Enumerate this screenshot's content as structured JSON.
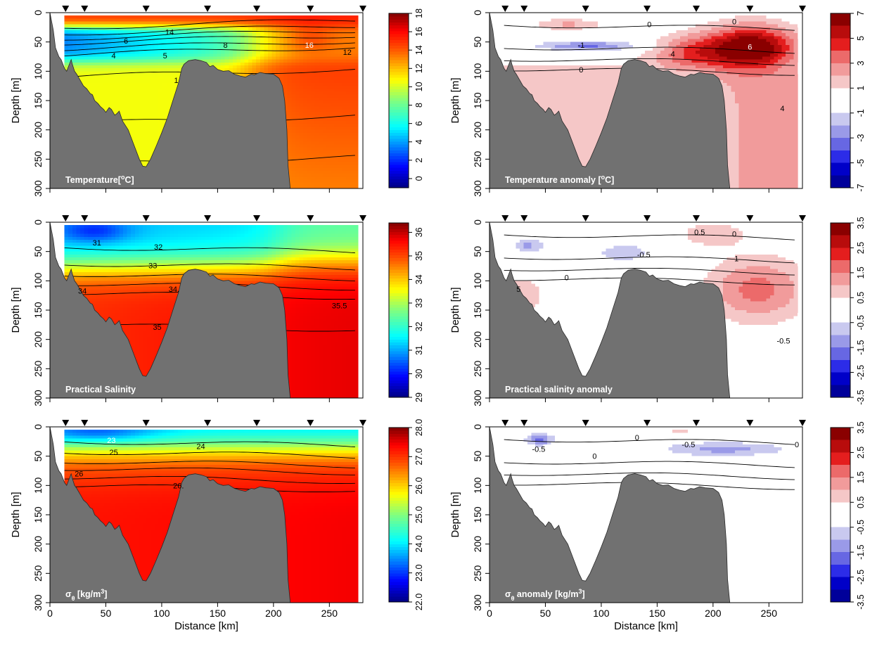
{
  "chart_data": [
    {
      "type": "heatmap",
      "id": "temperature",
      "label_parts": [
        [
          "Temperature[",
          ""
        ],
        [
          "o",
          "sup"
        ],
        [
          "C]",
          ""
        ]
      ],
      "xlabel": "",
      "ylabel": "Depth [m]",
      "xlim": [
        0,
        280
      ],
      "ylim": [
        300,
        0
      ],
      "xticks": [
        "0",
        "50",
        "100",
        "150",
        "200",
        "250"
      ],
      "yticks": [
        "0",
        "50",
        "100",
        "150",
        "200",
        "250",
        "300"
      ],
      "colorbar": {
        "type": "continuous",
        "range": [
          -1,
          18
        ],
        "ticks": [
          "0",
          "2",
          "4",
          "6",
          "8",
          "10",
          "12",
          "14",
          "16",
          "18"
        ]
      },
      "contour_labels": [
        {
          "text": "14",
          "x": 107,
          "y": 33,
          "color": "dark"
        },
        {
          "text": "6",
          "x": 68,
          "y": 48,
          "color": "dark"
        },
        {
          "text": "8",
          "x": 157,
          "y": 55,
          "color": "dark"
        },
        {
          "text": "4",
          "x": 57,
          "y": 73,
          "color": "dark"
        },
        {
          "text": "5",
          "x": 103,
          "y": 73,
          "color": "dark"
        },
        {
          "text": "1",
          "x": 113,
          "y": 115,
          "color": "dark"
        },
        {
          "text": "16",
          "x": 232,
          "y": 55,
          "color": "light"
        },
        {
          "text": "12",
          "x": 266,
          "y": 67,
          "color": "dark"
        }
      ]
    },
    {
      "type": "heatmap",
      "id": "temperature-anomaly",
      "label_parts": [
        [
          "Temperature anomaly [",
          ""
        ],
        [
          "o",
          "sup"
        ],
        [
          "C]",
          ""
        ]
      ],
      "xlabel": "",
      "ylabel": "Depth [m]",
      "xlim": [
        0,
        280
      ],
      "ylim": [
        300,
        0
      ],
      "xticks": [
        "0",
        "50",
        "100",
        "150",
        "200",
        "250"
      ],
      "yticks": [
        "0",
        "50",
        "100",
        "150",
        "200",
        "250",
        "300"
      ],
      "colorbar": {
        "type": "discrete",
        "range": [
          -7,
          7
        ],
        "ticks": [
          "7",
          "5",
          "3",
          "1",
          "-1",
          "-3",
          "-5",
          "-7"
        ]
      },
      "contour_labels": [
        {
          "text": "0",
          "x": 143,
          "y": 20,
          "color": "dark"
        },
        {
          "text": "0",
          "x": 219,
          "y": 15,
          "color": "dark"
        },
        {
          "text": "-1",
          "x": 82,
          "y": 55,
          "color": "dark"
        },
        {
          "text": "4",
          "x": 164,
          "y": 70,
          "color": "dark"
        },
        {
          "text": "6",
          "x": 233,
          "y": 58,
          "color": "light"
        },
        {
          "text": "0",
          "x": 82,
          "y": 97,
          "color": "dark"
        },
        {
          "text": "4",
          "x": 262,
          "y": 163,
          "color": "dark"
        }
      ]
    },
    {
      "type": "heatmap",
      "id": "salinity",
      "label_parts": [
        [
          "Practical Salinity",
          ""
        ]
      ],
      "xlabel": "",
      "ylabel": "Depth [m]",
      "xlim": [
        0,
        280
      ],
      "ylim": [
        300,
        0
      ],
      "xticks": [
        "0",
        "50",
        "100",
        "150",
        "200",
        "250"
      ],
      "yticks": [
        "0",
        "50",
        "100",
        "150",
        "200",
        "250",
        "300"
      ],
      "colorbar": {
        "type": "continuous",
        "range": [
          29,
          36.4
        ],
        "ticks": [
          "29",
          "30",
          "31",
          "32",
          "33",
          "34",
          "35",
          "36"
        ]
      },
      "contour_labels": [
        {
          "text": "31",
          "x": 42,
          "y": 35,
          "color": "dark"
        },
        {
          "text": "32",
          "x": 97,
          "y": 42,
          "color": "dark"
        },
        {
          "text": "33",
          "x": 92,
          "y": 74,
          "color": "dark"
        },
        {
          "text": "34",
          "x": 29,
          "y": 117,
          "color": "dark"
        },
        {
          "text": "34.",
          "x": 111,
          "y": 114,
          "color": "dark"
        },
        {
          "text": "35",
          "x": 96,
          "y": 179,
          "color": "dark"
        },
        {
          "text": "35.5",
          "x": 259,
          "y": 142,
          "color": "dark"
        }
      ]
    },
    {
      "type": "heatmap",
      "id": "salinity-anomaly",
      "label_parts": [
        [
          "Practical salinity anomaly",
          ""
        ]
      ],
      "xlabel": "",
      "ylabel": "Depth [m]",
      "xlim": [
        0,
        280
      ],
      "ylim": [
        300,
        0
      ],
      "xticks": [
        "0",
        "50",
        "100",
        "150",
        "200",
        "250"
      ],
      "yticks": [
        "0",
        "50",
        "100",
        "150",
        "200",
        "250",
        "300"
      ],
      "colorbar": {
        "type": "discrete",
        "range": [
          -3.5,
          3.5
        ],
        "ticks": [
          "3.5",
          "2.5",
          "1.5",
          "0.5",
          "-0.5",
          "-1.5",
          "-2.5",
          "-3.5"
        ]
      },
      "contour_labels": [
        {
          "text": "0.5",
          "x": 188,
          "y": 17,
          "color": "dark"
        },
        {
          "text": "0",
          "x": 219,
          "y": 20,
          "color": "dark"
        },
        {
          "text": "-0.5",
          "x": 138,
          "y": 55,
          "color": "dark"
        },
        {
          "text": "0",
          "x": 69,
          "y": 94,
          "color": "dark"
        },
        {
          "text": "1",
          "x": 221,
          "y": 62,
          "color": "dark"
        },
        {
          "text": "5",
          "x": 26,
          "y": 114,
          "color": "dark"
        },
        {
          "text": "-0.5",
          "x": 263,
          "y": 202,
          "color": "dark"
        }
      ]
    },
    {
      "type": "heatmap",
      "id": "density",
      "label_parts": [
        [
          "σ",
          ""
        ],
        [
          "θ",
          "sub"
        ],
        [
          " [kg/m",
          ""
        ],
        [
          "3",
          "sup"
        ],
        [
          "]",
          ""
        ]
      ],
      "xlabel": "Distance [km]",
      "ylabel": "Depth [m]",
      "xlim": [
        0,
        280
      ],
      "ylim": [
        300,
        0
      ],
      "xticks": [
        "0",
        "50",
        "100",
        "150",
        "200",
        "250"
      ],
      "yticks": [
        "0",
        "50",
        "100",
        "150",
        "200",
        "250",
        "300"
      ],
      "colorbar": {
        "type": "continuous",
        "range": [
          22,
          28
        ],
        "ticks": [
          "22.0",
          "23.0",
          "24.0",
          "25.0",
          "26.0",
          "27.0",
          "28.0"
        ]
      },
      "contour_labels": [
        {
          "text": "23",
          "x": 55,
          "y": 23,
          "color": "light"
        },
        {
          "text": "24",
          "x": 135,
          "y": 33,
          "color": "dark"
        },
        {
          "text": "25",
          "x": 57,
          "y": 43,
          "color": "dark"
        },
        {
          "text": "26",
          "x": 26,
          "y": 80,
          "color": "dark"
        },
        {
          "text": "26.",
          "x": 115,
          "y": 100,
          "color": "dark"
        }
      ]
    },
    {
      "type": "heatmap",
      "id": "density-anomaly",
      "label_parts": [
        [
          "σ",
          ""
        ],
        [
          "θ",
          "sub"
        ],
        [
          " anomaly [kg/m",
          ""
        ],
        [
          "3",
          "sup"
        ],
        [
          "]",
          ""
        ]
      ],
      "xlabel": "Distance [km]",
      "ylabel": "Depth [m]",
      "xlim": [
        0,
        280
      ],
      "ylim": [
        300,
        0
      ],
      "xticks": [
        "0",
        "50",
        "100",
        "150",
        "200",
        "250"
      ],
      "yticks": [
        "0",
        "50",
        "100",
        "150",
        "200",
        "250",
        "300"
      ],
      "colorbar": {
        "type": "discrete",
        "range": [
          -3.5,
          3.5
        ],
        "ticks": [
          "3.5",
          "2.5",
          "1.5",
          "0.5",
          "-0.5",
          "-1.5",
          "-2.5",
          "-3.5"
        ]
      },
      "contour_labels": [
        {
          "text": "0",
          "x": 132,
          "y": 18,
          "color": "dark"
        },
        {
          "text": "-0.5",
          "x": 178,
          "y": 30,
          "color": "dark"
        },
        {
          "text": "-0.5",
          "x": 44,
          "y": 38,
          "color": "dark"
        },
        {
          "text": "0",
          "x": 94,
          "y": 50,
          "color": "dark"
        },
        {
          "text": "0",
          "x": 275,
          "y": 30,
          "color": "dark"
        }
      ]
    }
  ],
  "station_distances_km": [
    14,
    31,
    86,
    141,
    185,
    233,
    280
  ],
  "bathymetry_km_m": [
    [
      0,
      0
    ],
    [
      3,
      30
    ],
    [
      5,
      60
    ],
    [
      8,
      75
    ],
    [
      10,
      80
    ],
    [
      13,
      95
    ],
    [
      15,
      100
    ],
    [
      17,
      90
    ],
    [
      19,
      80
    ],
    [
      20,
      88
    ],
    [
      22,
      100
    ],
    [
      24,
      105
    ],
    [
      27,
      115
    ],
    [
      30,
      125
    ],
    [
      33,
      130
    ],
    [
      36,
      138
    ],
    [
      38,
      140
    ],
    [
      40,
      150
    ],
    [
      43,
      155
    ],
    [
      45,
      160
    ],
    [
      48,
      165
    ],
    [
      50,
      170
    ],
    [
      53,
      162
    ],
    [
      55,
      165
    ],
    [
      58,
      175
    ],
    [
      60,
      172
    ],
    [
      62,
      168
    ],
    [
      65,
      185
    ],
    [
      70,
      200
    ],
    [
      75,
      225
    ],
    [
      80,
      250
    ],
    [
      83,
      262
    ],
    [
      86,
      263
    ],
    [
      90,
      250
    ],
    [
      95,
      228
    ],
    [
      100,
      205
    ],
    [
      105,
      180
    ],
    [
      110,
      150
    ],
    [
      115,
      120
    ],
    [
      118,
      95
    ],
    [
      120,
      88
    ],
    [
      124,
      82
    ],
    [
      130,
      80
    ],
    [
      135,
      82
    ],
    [
      140,
      85
    ],
    [
      143,
      92
    ],
    [
      146,
      90
    ],
    [
      150,
      97
    ],
    [
      155,
      100
    ],
    [
      160,
      99
    ],
    [
      165,
      105
    ],
    [
      170,
      108
    ],
    [
      175,
      110
    ],
    [
      180,
      105
    ],
    [
      183,
      106
    ],
    [
      188,
      102
    ],
    [
      193,
      104
    ],
    [
      200,
      105
    ],
    [
      205,
      112
    ],
    [
      208,
      125
    ],
    [
      210,
      150
    ],
    [
      212,
      200
    ],
    [
      213,
      260
    ],
    [
      215,
      300
    ]
  ],
  "colors": {
    "bathymetry": "#717171",
    "positive_anomaly": [
      "#f5c7c7",
      "#f19b9b",
      "#ec6a6a",
      "#e41e1e",
      "#b80c0c",
      "#8a0000"
    ],
    "negative_anomaly": [
      "#c9c9ef",
      "#9a9ae8",
      "#6767e3",
      "#2c2ce8",
      "#0000c8",
      "#00009a"
    ]
  }
}
